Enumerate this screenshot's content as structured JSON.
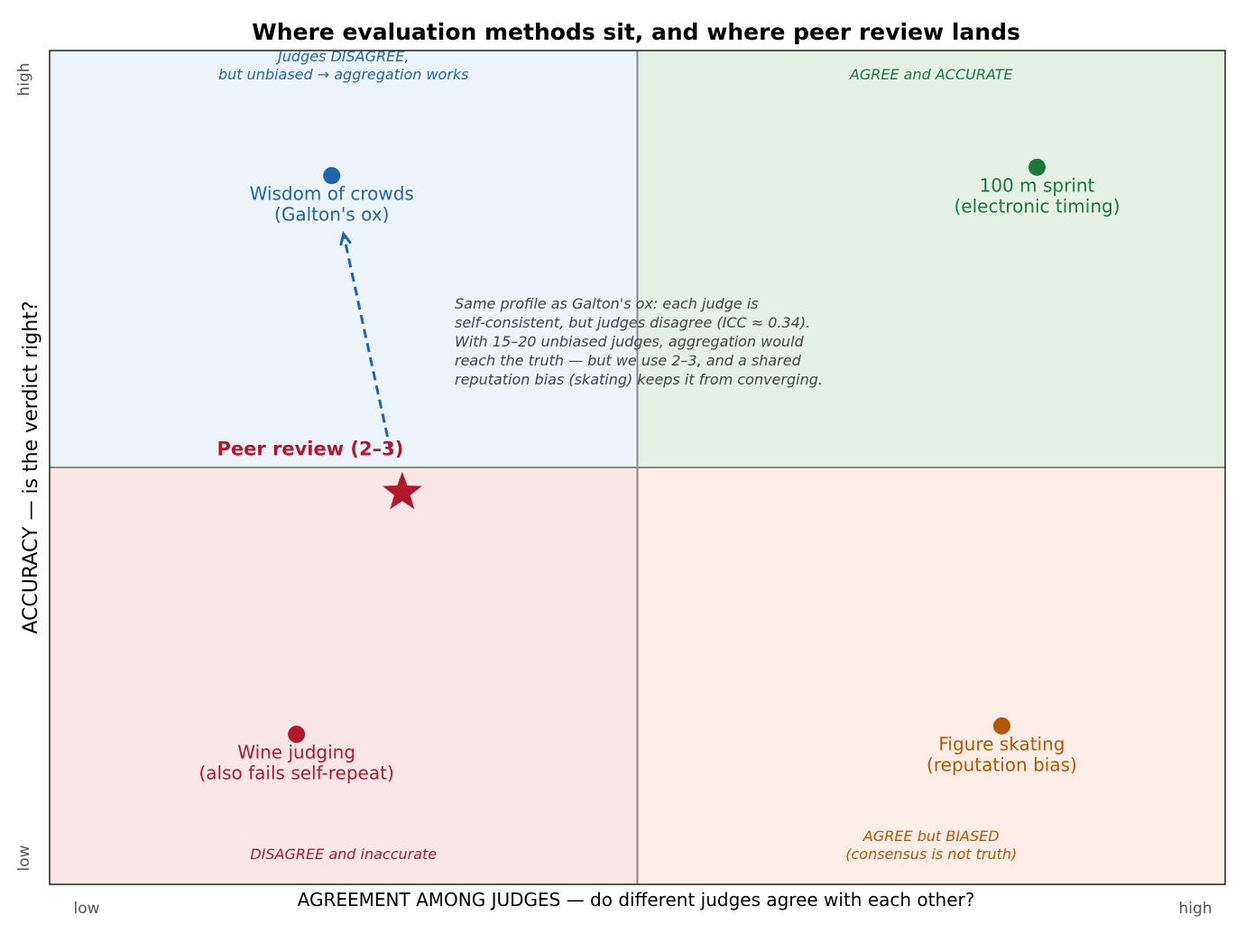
{
  "chart_data": {
    "type": "scatter",
    "title": "Where evaluation methods sit, and where peer review lands",
    "xlabel": "AGREEMENT AMONG JUDGES  —  do different judges agree with each other?",
    "ylabel": "ACCURACY  —  is the verdict right?",
    "xlim": [
      0,
      1
    ],
    "ylim": [
      0,
      1
    ],
    "divider": {
      "x": 0.5,
      "y": 0.5
    },
    "grid": false,
    "x_ticks": [
      "low",
      "high"
    ],
    "y_ticks": [
      "low",
      "high"
    ],
    "quadrants": [
      {
        "id": "top-left",
        "label_lines": [
          "Judges DISAGREE,",
          "but unbiased → aggregation works"
        ],
        "fill": "#edf3fa",
        "color": "#2166ac"
      },
      {
        "id": "top-right",
        "label_lines": [
          "AGREE and ACCURATE"
        ],
        "fill": "#e6f1e6",
        "color": "#1b7837"
      },
      {
        "id": "bottom-left",
        "label_lines": [
          "DISAGREE and inaccurate"
        ],
        "fill": "#f9e7e8",
        "color": "#b2182b"
      },
      {
        "id": "bottom-right",
        "label_lines": [
          "AGREE but BIASED",
          "(consensus is not truth)"
        ],
        "fill": "#fcede6",
        "color": "#b35806"
      }
    ],
    "points": [
      {
        "id": "wisdom-of-crowds",
        "x": 0.24,
        "y": 0.85,
        "label_lines": [
          "Wisdom of crowds",
          "(Galton's ox)"
        ],
        "color": "#2166ac",
        "marker": "circle"
      },
      {
        "id": "sprint",
        "x": 0.84,
        "y": 0.86,
        "label_lines": [
          "100 m sprint",
          "(electronic timing)"
        ],
        "color": "#1b7837",
        "marker": "circle"
      },
      {
        "id": "wine-judging",
        "x": 0.21,
        "y": 0.18,
        "label_lines": [
          "Wine judging",
          "(also fails self-repeat)"
        ],
        "color": "#b2182b",
        "marker": "circle"
      },
      {
        "id": "figure-skating",
        "x": 0.81,
        "y": 0.19,
        "label_lines": [
          "Figure skating",
          "(reputation bias)"
        ],
        "color": "#b35806",
        "marker": "circle"
      },
      {
        "id": "peer-review",
        "x": 0.3,
        "y": 0.47,
        "label_lines": [
          "Peer review (2–3)"
        ],
        "color": "#b2182b",
        "marker": "star"
      }
    ],
    "arrow": {
      "from": [
        0.29,
        0.52
      ],
      "to": [
        0.25,
        0.78
      ],
      "color": "#2166ac",
      "style": "dashed"
    },
    "annotation_lines": [
      "Same profile as Galton's ox: each judge is",
      "self-consistent, but judges disagree (ICC ≈ 0.34).",
      "With 15–20 unbiased judges, aggregation would",
      "reach the truth — but we use 2–3, and a shared",
      "reputation bias (skating) keeps it from converging."
    ]
  }
}
